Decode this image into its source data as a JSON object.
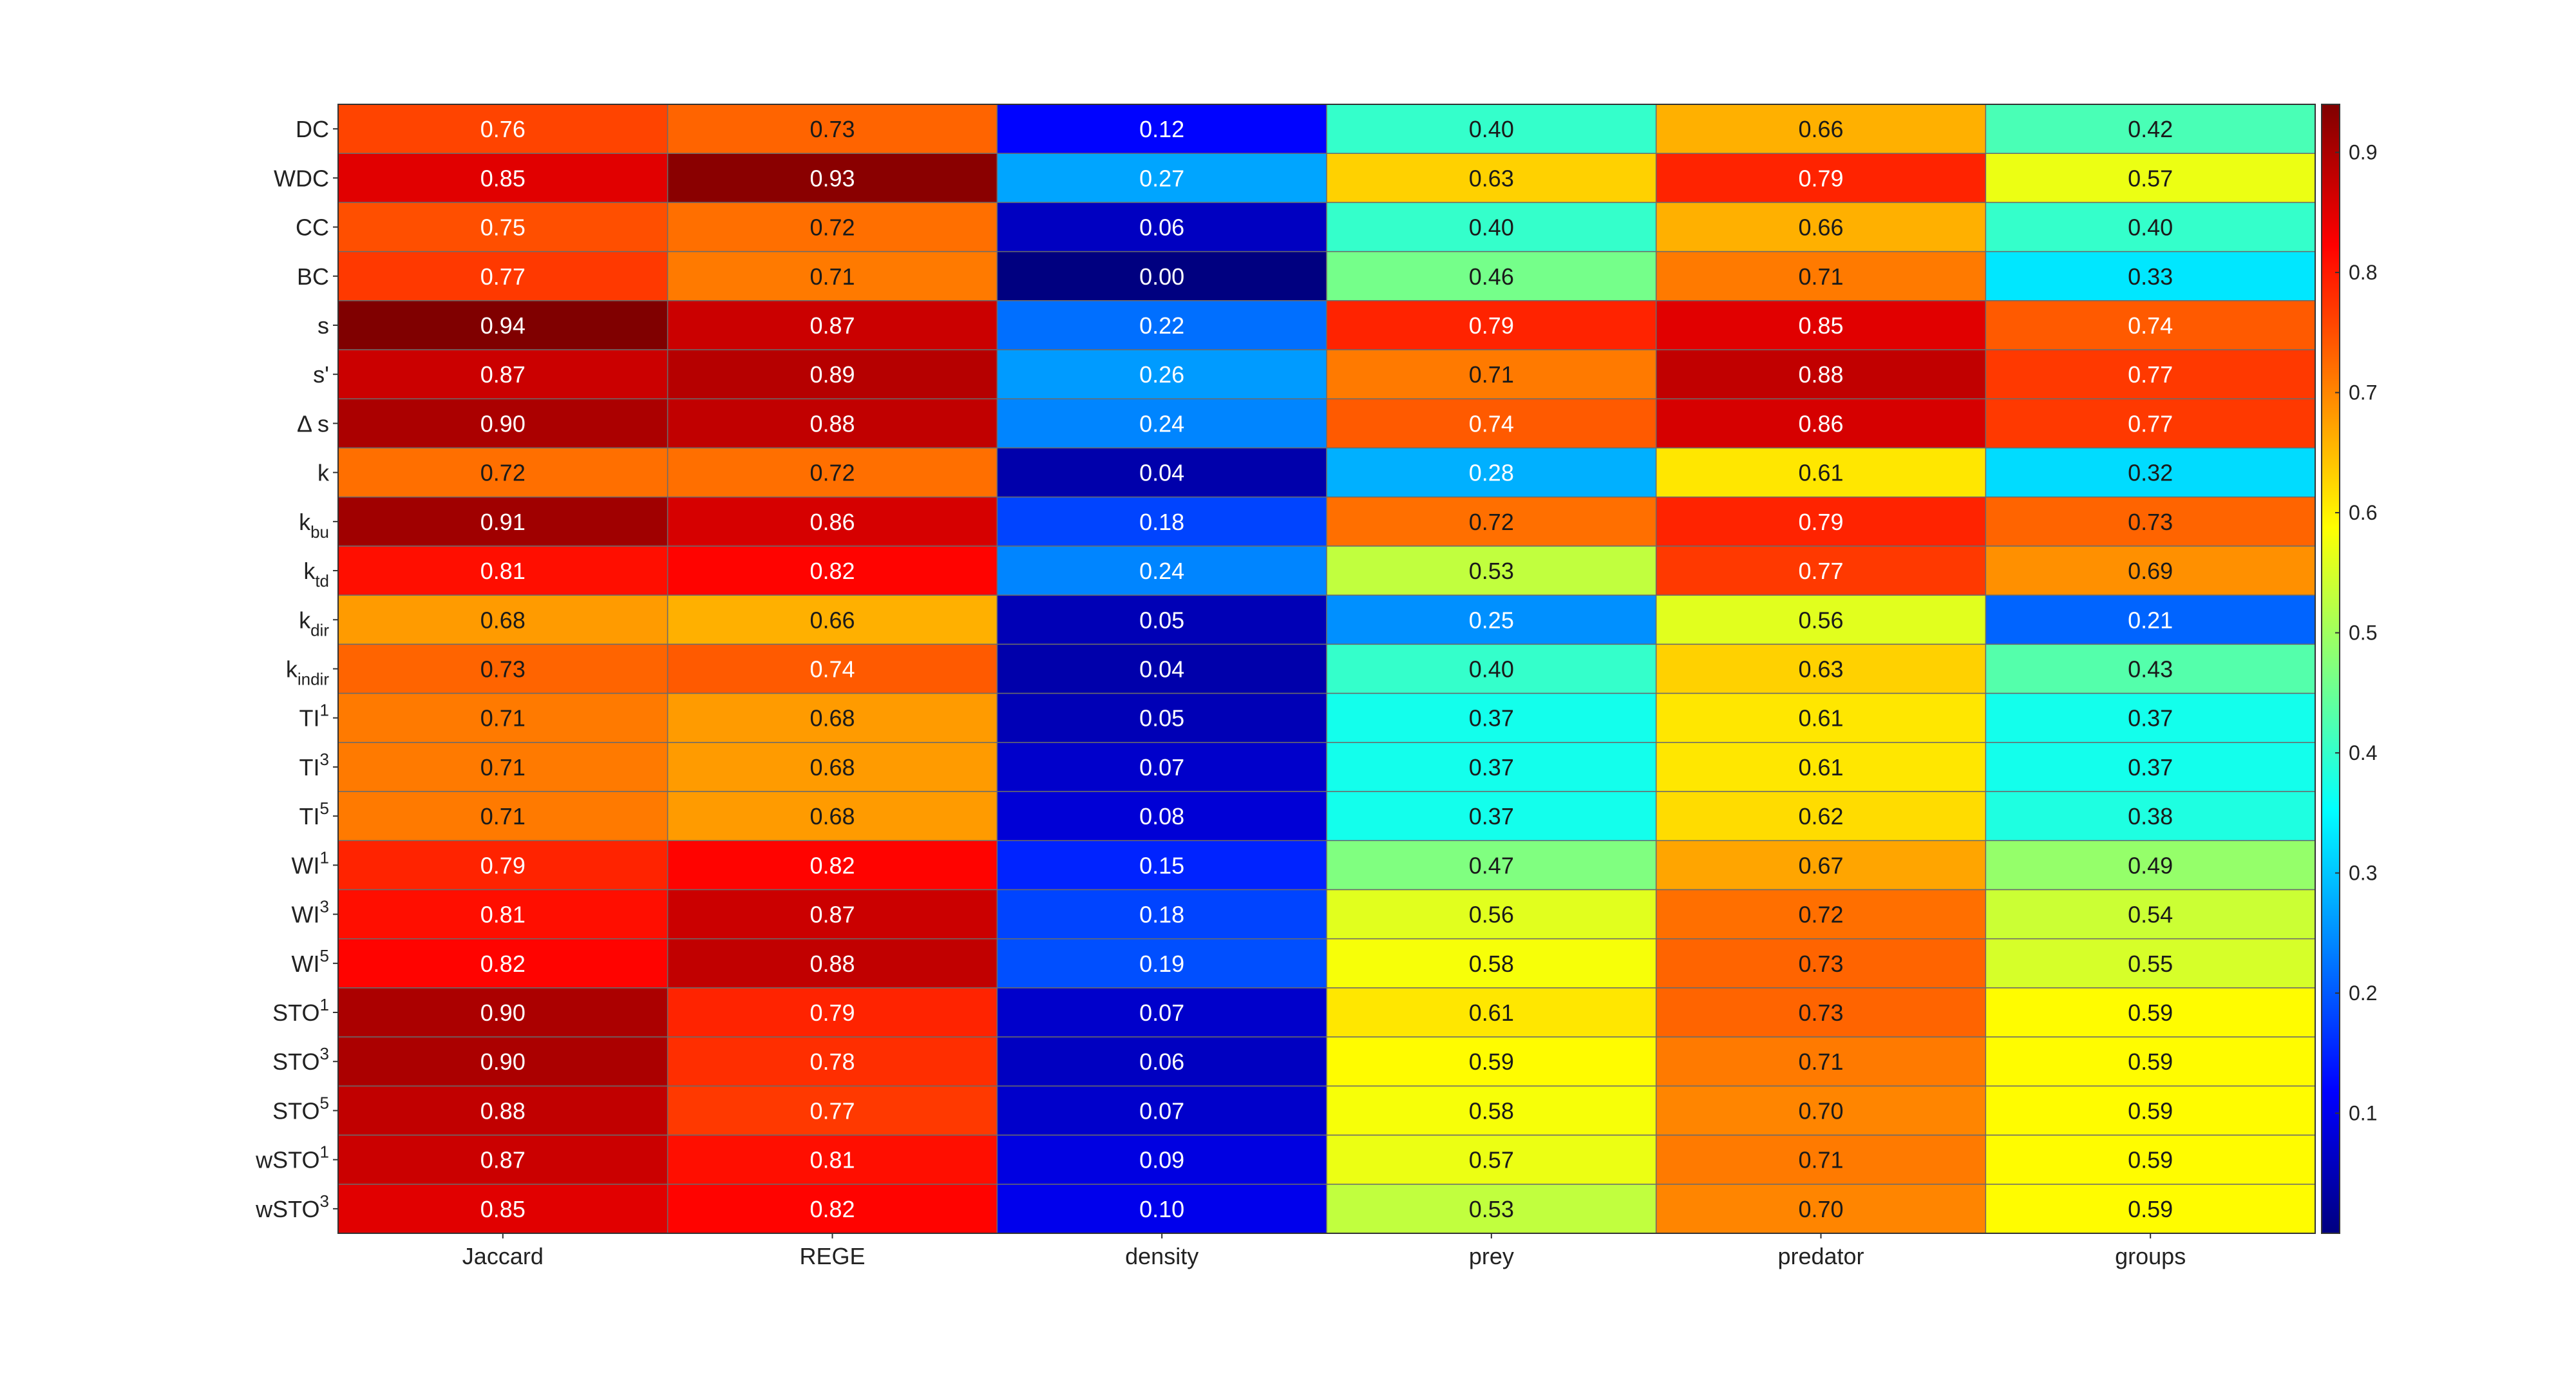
{
  "chart_data": {
    "type": "heatmap",
    "title": "",
    "xlabel": "",
    "ylabel": "",
    "colormap": "jet",
    "color_range": [
      0.0,
      0.94
    ],
    "colorbar": {
      "placement": "right",
      "ticks": [
        0.1,
        0.2,
        0.3,
        0.4,
        0.5,
        0.6,
        0.7,
        0.8,
        0.9
      ],
      "tick_labels": [
        "0.1",
        "0.2",
        "0.3",
        "0.4",
        "0.5",
        "0.6",
        "0.7",
        "0.8",
        "0.9"
      ]
    },
    "columns": [
      "Jaccard",
      "REGE",
      "density",
      "prey",
      "predator",
      "groups"
    ],
    "rows": [
      {
        "label": "DC",
        "sub": "",
        "sup": "",
        "values": [
          0.76,
          0.73,
          0.12,
          0.4,
          0.66,
          0.42
        ]
      },
      {
        "label": "WDC",
        "sub": "",
        "sup": "",
        "values": [
          0.85,
          0.93,
          0.27,
          0.63,
          0.79,
          0.57
        ]
      },
      {
        "label": "CC",
        "sub": "",
        "sup": "",
        "values": [
          0.75,
          0.72,
          0.06,
          0.4,
          0.66,
          0.4
        ]
      },
      {
        "label": "BC",
        "sub": "",
        "sup": "",
        "values": [
          0.77,
          0.71,
          0.0,
          0.46,
          0.71,
          0.33
        ]
      },
      {
        "label": "s",
        "sub": "",
        "sup": "",
        "values": [
          0.94,
          0.87,
          0.22,
          0.79,
          0.85,
          0.74
        ]
      },
      {
        "label": "s'",
        "sub": "",
        "sup": "",
        "values": [
          0.87,
          0.89,
          0.26,
          0.71,
          0.88,
          0.77
        ]
      },
      {
        "label": "Δ s",
        "sub": "",
        "sup": "",
        "values": [
          0.9,
          0.88,
          0.24,
          0.74,
          0.86,
          0.77
        ]
      },
      {
        "label": "k",
        "sub": "",
        "sup": "",
        "values": [
          0.72,
          0.72,
          0.04,
          0.28,
          0.61,
          0.32
        ]
      },
      {
        "label": "k",
        "sub": "bu",
        "sup": "",
        "values": [
          0.91,
          0.86,
          0.18,
          0.72,
          0.79,
          0.73
        ]
      },
      {
        "label": "k",
        "sub": "td",
        "sup": "",
        "values": [
          0.81,
          0.82,
          0.24,
          0.53,
          0.77,
          0.69
        ]
      },
      {
        "label": "k",
        "sub": "dir",
        "sup": "",
        "values": [
          0.68,
          0.66,
          0.05,
          0.25,
          0.56,
          0.21
        ]
      },
      {
        "label": "k",
        "sub": "indir",
        "sup": "",
        "values": [
          0.73,
          0.74,
          0.04,
          0.4,
          0.63,
          0.43
        ]
      },
      {
        "label": "TI",
        "sub": "",
        "sup": "1",
        "values": [
          0.71,
          0.68,
          0.05,
          0.37,
          0.61,
          0.37
        ]
      },
      {
        "label": "TI",
        "sub": "",
        "sup": "3",
        "values": [
          0.71,
          0.68,
          0.07,
          0.37,
          0.61,
          0.37
        ]
      },
      {
        "label": "TI",
        "sub": "",
        "sup": "5",
        "values": [
          0.71,
          0.68,
          0.08,
          0.37,
          0.62,
          0.38
        ]
      },
      {
        "label": "WI",
        "sub": "",
        "sup": "1",
        "values": [
          0.79,
          0.82,
          0.15,
          0.47,
          0.67,
          0.49
        ]
      },
      {
        "label": "WI",
        "sub": "",
        "sup": "3",
        "values": [
          0.81,
          0.87,
          0.18,
          0.56,
          0.72,
          0.54
        ]
      },
      {
        "label": "WI",
        "sub": "",
        "sup": "5",
        "values": [
          0.82,
          0.88,
          0.19,
          0.58,
          0.73,
          0.55
        ]
      },
      {
        "label": "STO",
        "sub": "",
        "sup": "1",
        "values": [
          0.9,
          0.79,
          0.07,
          0.61,
          0.73,
          0.59
        ]
      },
      {
        "label": "STO",
        "sub": "",
        "sup": "3",
        "values": [
          0.9,
          0.78,
          0.06,
          0.59,
          0.71,
          0.59
        ]
      },
      {
        "label": "STO",
        "sub": "",
        "sup": "5",
        "values": [
          0.88,
          0.77,
          0.07,
          0.58,
          0.7,
          0.59
        ]
      },
      {
        "label": "wSTO",
        "sub": "",
        "sup": "1",
        "values": [
          0.87,
          0.81,
          0.09,
          0.57,
          0.71,
          0.59
        ]
      },
      {
        "label": "wSTO",
        "sub": "",
        "sup": "3",
        "values": [
          0.85,
          0.82,
          0.1,
          0.53,
          0.7,
          0.59
        ]
      }
    ]
  }
}
